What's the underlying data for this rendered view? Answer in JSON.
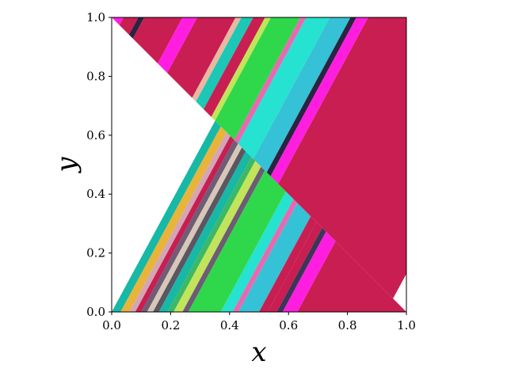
{
  "chart_data": {
    "type": "heatmap",
    "title": "",
    "xlabel": "x",
    "ylabel": "y",
    "xlim": [
      0.0,
      1.0
    ],
    "ylim": [
      0.0,
      1.0
    ],
    "x_ticks": [
      "0.0",
      "0.2",
      "0.4",
      "0.6",
      "0.8",
      "1.0"
    ],
    "y_ticks": [
      "0.0",
      "0.2",
      "0.4",
      "0.6",
      "0.8",
      "1.0"
    ],
    "grid": false,
    "legend": "none",
    "stripe_slope": 1.85,
    "discontinuity": {
      "y_at_x0": 1.0,
      "slope": -1.0
    },
    "region_below": {
      "stripes": [
        {
          "offset": 0.0,
          "color": "#17b8a6"
        },
        {
          "offset": 0.03,
          "color": "#e8b43a"
        },
        {
          "offset": 0.06,
          "color": "#d4a5b5"
        },
        {
          "offset": 0.08,
          "color": "#c81e52"
        },
        {
          "offset": 0.1,
          "color": "#6e5d75"
        },
        {
          "offset": 0.12,
          "color": "#d6c7b8"
        },
        {
          "offset": 0.14,
          "color": "#5c5562"
        },
        {
          "offset": 0.16,
          "color": "#17b8a6"
        },
        {
          "offset": 0.19,
          "color": "#3db864"
        },
        {
          "offset": 0.21,
          "color": "#c2e45a"
        },
        {
          "offset": 0.24,
          "color": "#6c5c74"
        },
        {
          "offset": 0.26,
          "color": "#2fd84a"
        },
        {
          "offset": 0.37,
          "color": "#26e2d0"
        },
        {
          "offset": 0.41,
          "color": "#e76ab0"
        },
        {
          "offset": 0.43,
          "color": "#35c1d6"
        },
        {
          "offset": 0.5,
          "color": "#c81e52"
        },
        {
          "offset": 0.53,
          "color": "#c81e52"
        },
        {
          "offset": 0.56,
          "color": "#3b3657"
        },
        {
          "offset": 0.58,
          "color": "#ff1ee0"
        },
        {
          "offset": 0.63,
          "color": "#c81e52"
        }
      ]
    },
    "region_above": {
      "stripes": [
        {
          "offset": -0.6,
          "color": "#c81e52"
        },
        {
          "offset": -0.54,
          "color": "#ff1ee0"
        },
        {
          "offset": -0.5,
          "color": "#c81e52"
        },
        {
          "offset": -0.45,
          "color": "#2a2440"
        },
        {
          "offset": -0.43,
          "color": "#c81e52"
        },
        {
          "offset": -0.3,
          "color": "#ff1ee0"
        },
        {
          "offset": -0.25,
          "color": "#c81e52"
        },
        {
          "offset": -0.12,
          "color": "#e8b8a0"
        },
        {
          "offset": -0.1,
          "color": "#1cc7b5"
        },
        {
          "offset": -0.06,
          "color": "#c81e52"
        },
        {
          "offset": -0.02,
          "color": "#c2e45a"
        },
        {
          "offset": 0.0,
          "color": "#2fd84a"
        },
        {
          "offset": 0.1,
          "color": "#e76ab0"
        },
        {
          "offset": 0.12,
          "color": "#26e2d0"
        },
        {
          "offset": 0.2,
          "color": "#35c1d6"
        },
        {
          "offset": 0.27,
          "color": "#2a2440"
        },
        {
          "offset": 0.29,
          "color": "#ff1ee0"
        },
        {
          "offset": 0.33,
          "color": "#c81e52"
        }
      ]
    }
  }
}
